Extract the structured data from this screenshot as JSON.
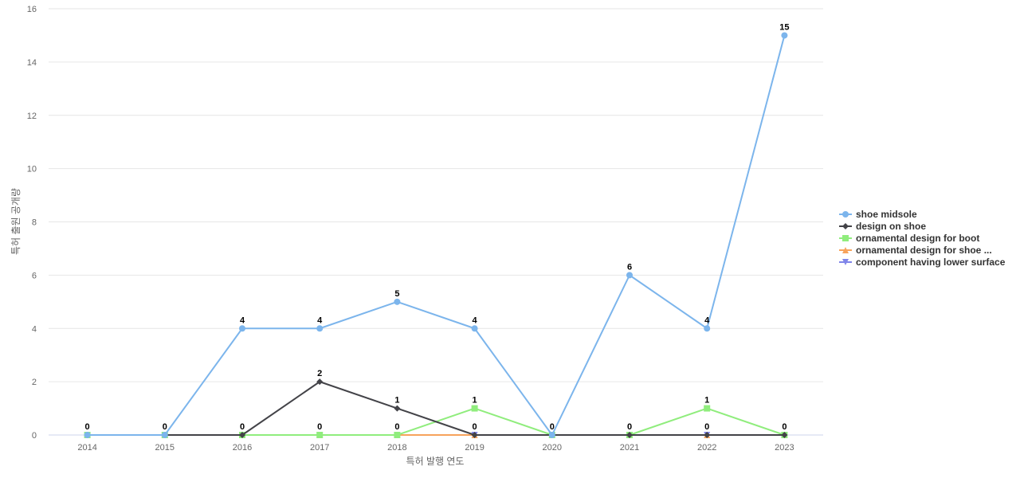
{
  "chart_data": {
    "type": "line",
    "xlabel": "특허 발행 연도",
    "ylabel": "특허 출원 공개량",
    "categories": [
      "2014",
      "2015",
      "2016",
      "2017",
      "2018",
      "2019",
      "2020",
      "2021",
      "2022",
      "2023"
    ],
    "ylim": [
      0,
      16
    ],
    "yticks": [
      0,
      2,
      4,
      6,
      8,
      10,
      12,
      14,
      16
    ],
    "grid": true,
    "legend_position": "right",
    "series": [
      {
        "name": "shoe midsole",
        "color": "#7cb5ec",
        "marker": "circle",
        "values": [
          0,
          0,
          4,
          4,
          5,
          4,
          0,
          6,
          4,
          15
        ]
      },
      {
        "name": "design on shoe",
        "color": "#434348",
        "marker": "diamond",
        "values": [
          0,
          0,
          0,
          2,
          1,
          0,
          0,
          0,
          0,
          0
        ]
      },
      {
        "name": "ornamental design for boot",
        "color": "#90ed7d",
        "marker": "square",
        "values": [
          0,
          0,
          0,
          0,
          0,
          1,
          0,
          0,
          1,
          0
        ]
      },
      {
        "name": "ornamental design for shoe ...",
        "color": "#f7a35c",
        "marker": "triangle",
        "values": [
          0,
          0,
          0,
          0,
          0,
          0,
          0,
          0,
          0,
          0
        ]
      },
      {
        "name": "component having lower surface",
        "color": "#8085e9",
        "marker": "triangle-down",
        "values": [
          0,
          0,
          0,
          0,
          0,
          0,
          0,
          0,
          0,
          0
        ]
      }
    ],
    "data_labels": [
      {
        "category": "2014",
        "text": "0"
      },
      {
        "category": "2015",
        "text": "0"
      },
      {
        "category": "2016",
        "text": "4"
      },
      {
        "category": "2016",
        "text": "0"
      },
      {
        "category": "2017",
        "text": "4"
      },
      {
        "category": "2017",
        "text": "2"
      },
      {
        "category": "2017",
        "text": "0"
      },
      {
        "category": "2018",
        "text": "5"
      },
      {
        "category": "2018",
        "text": "1"
      },
      {
        "category": "2018",
        "text": "0"
      },
      {
        "category": "2019",
        "text": "4"
      },
      {
        "category": "2019",
        "text": "1"
      },
      {
        "category": "2019",
        "text": "0"
      },
      {
        "category": "2020",
        "text": "0"
      },
      {
        "category": "2021",
        "text": "6"
      },
      {
        "category": "2021",
        "text": "0"
      },
      {
        "category": "2022",
        "text": "4"
      },
      {
        "category": "2022",
        "text": "1"
      },
      {
        "category": "2022",
        "text": "0"
      },
      {
        "category": "2023",
        "text": "15"
      },
      {
        "category": "2023",
        "text": "0"
      }
    ]
  }
}
